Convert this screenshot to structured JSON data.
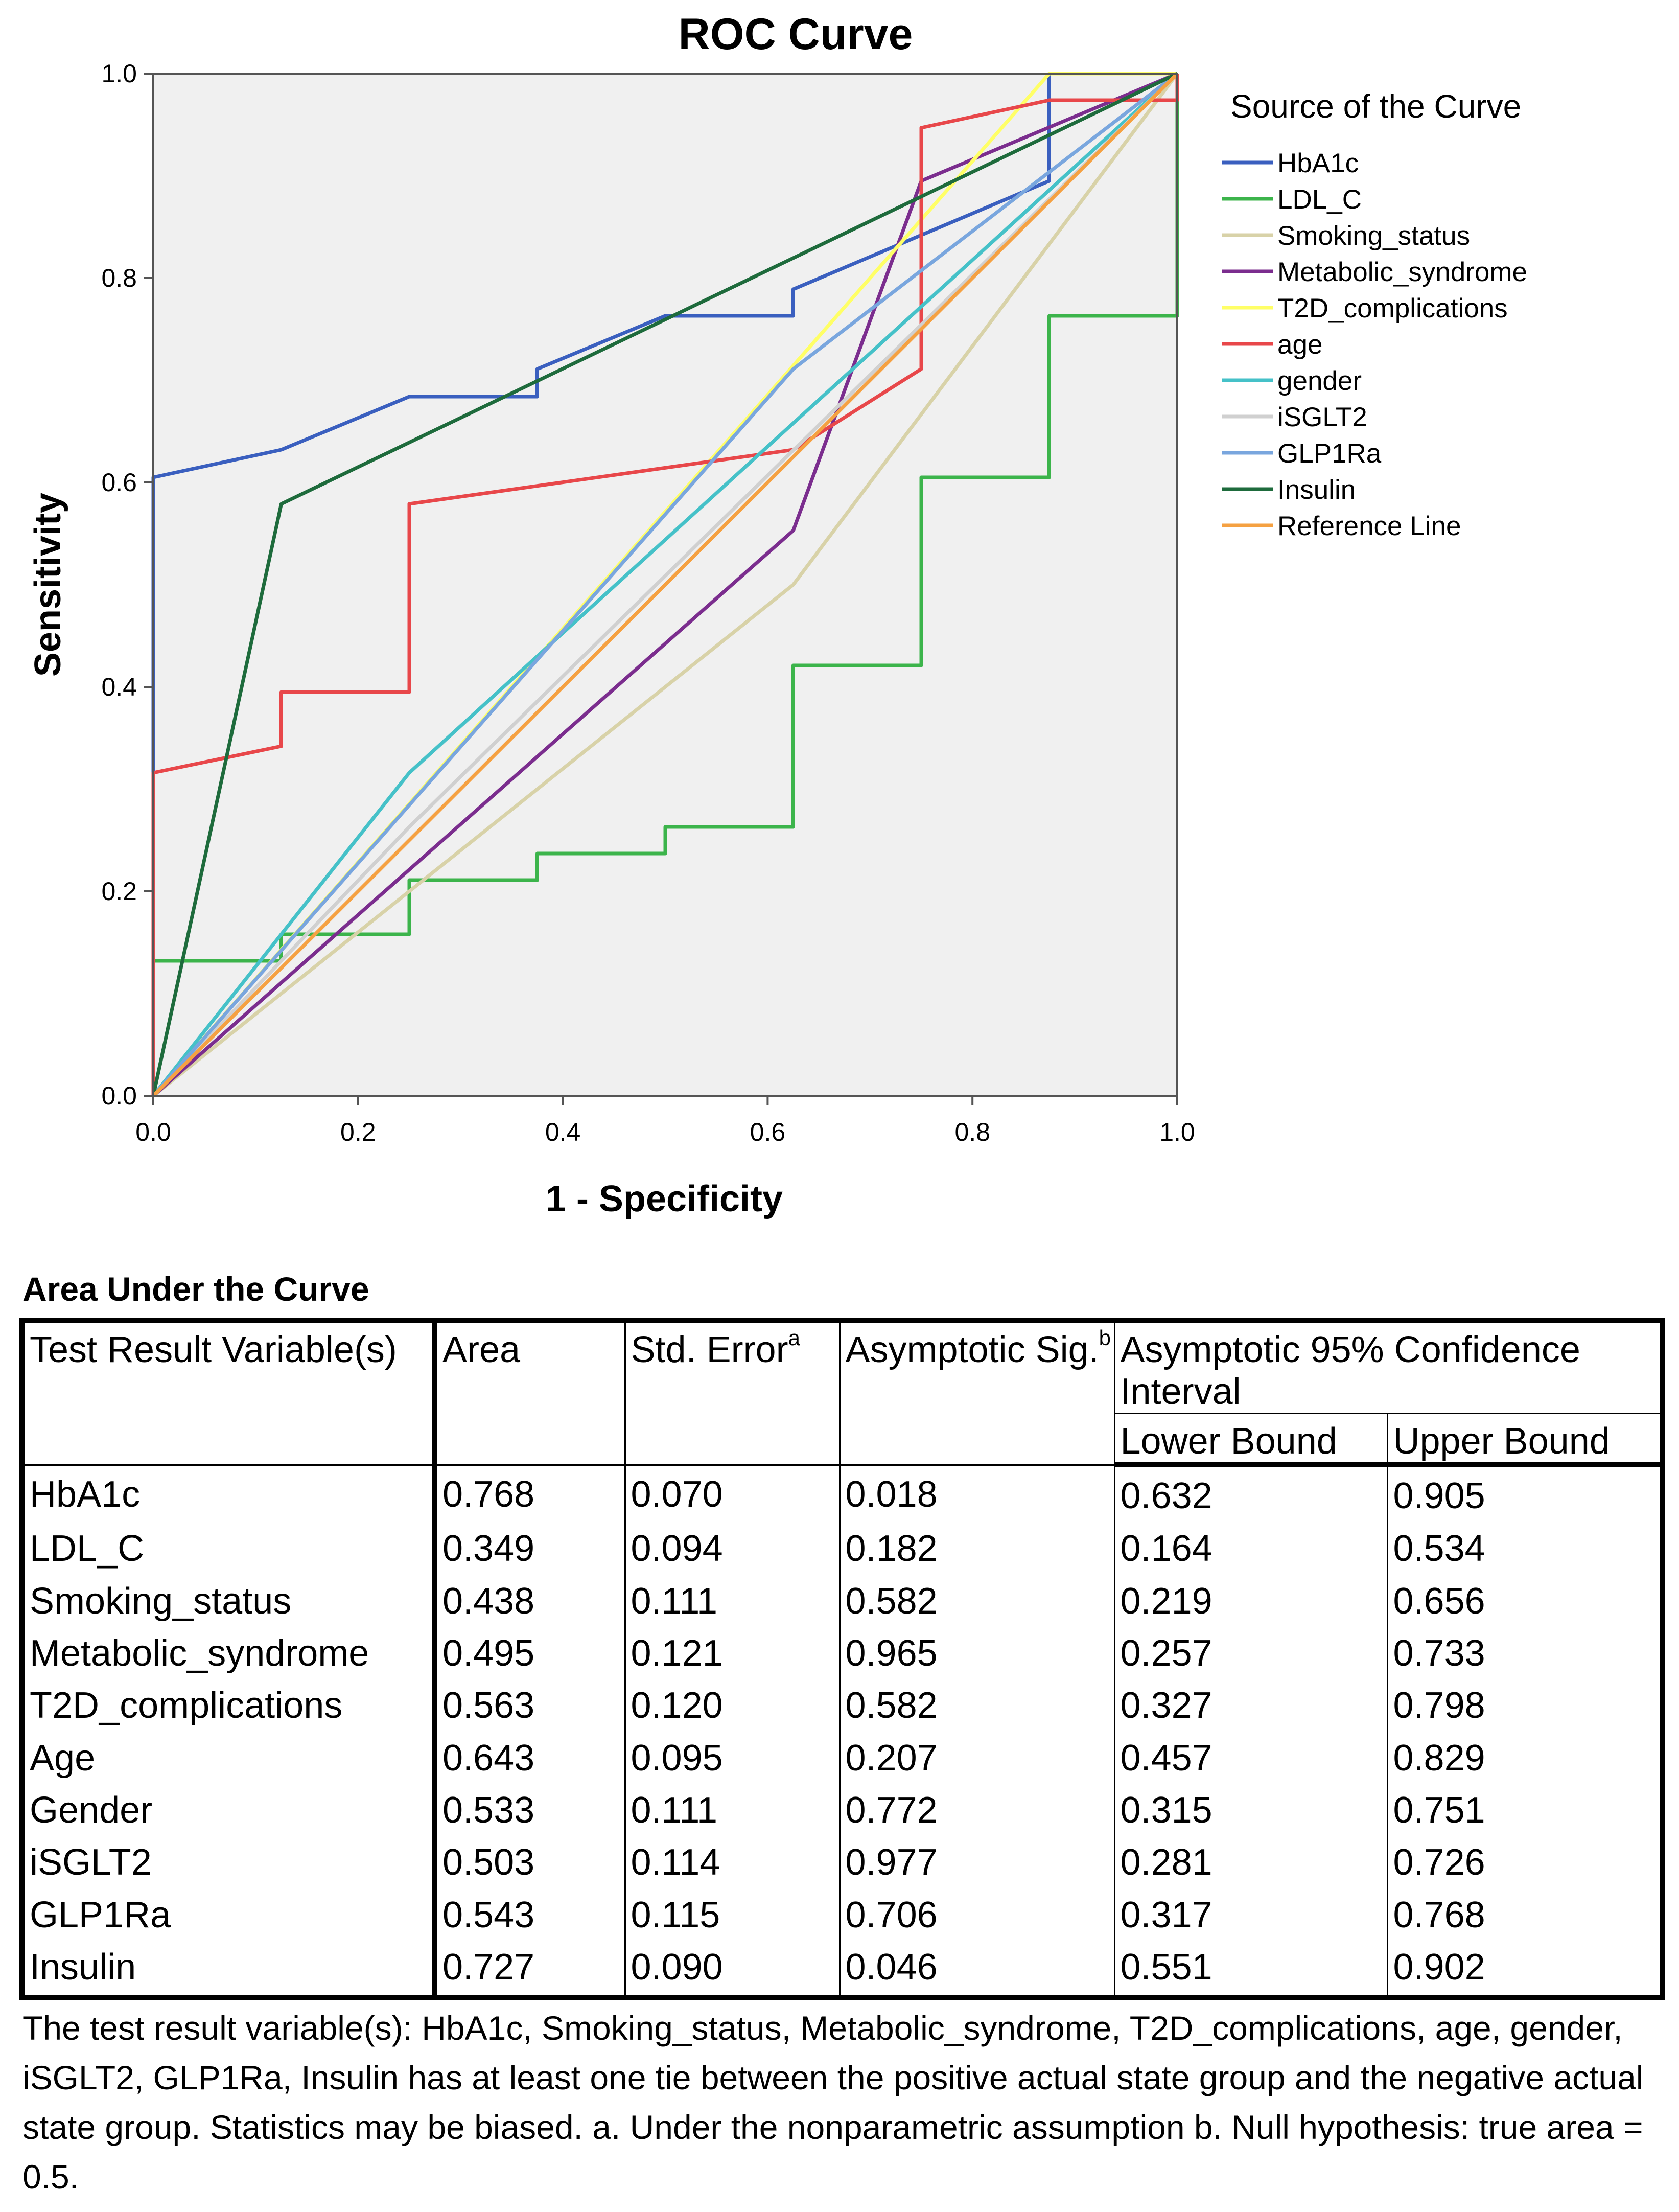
{
  "chart_data": {
    "type": "line",
    "title": "ROC Curve",
    "xlabel": "1 - Specificity",
    "ylabel": "Sensitivity",
    "xlim": [
      0,
      1
    ],
    "ylim": [
      0,
      1
    ],
    "x_ticks": [
      "0.0",
      "0.2",
      "0.4",
      "0.6",
      "0.8",
      "1.0"
    ],
    "y_ticks": [
      "0.0",
      "0.2",
      "0.4",
      "0.6",
      "0.8",
      "1.0"
    ],
    "grid": false,
    "plot_background": "#f0f0f0",
    "legend_title": "Source of the Curve",
    "legend_position": "right",
    "series": [
      {
        "name": "HbA1c",
        "color": "#3a5fbf",
        "points": [
          [
            0,
            0
          ],
          [
            0,
            0.605
          ],
          [
            0.125,
            0.632
          ],
          [
            0.25,
            0.684
          ],
          [
            0.375,
            0.684
          ],
          [
            0.375,
            0.711
          ],
          [
            0.5,
            0.763
          ],
          [
            0.625,
            0.763
          ],
          [
            0.625,
            0.789
          ],
          [
            0.875,
            0.895
          ],
          [
            0.875,
            1
          ],
          [
            1,
            1
          ]
        ]
      },
      {
        "name": "LDL_C",
        "color": "#3cb44b",
        "points": [
          [
            0,
            0
          ],
          [
            0,
            0.132
          ],
          [
            0.125,
            0.132
          ],
          [
            0.125,
            0.158
          ],
          [
            0.25,
            0.158
          ],
          [
            0.25,
            0.211
          ],
          [
            0.375,
            0.211
          ],
          [
            0.375,
            0.237
          ],
          [
            0.5,
            0.237
          ],
          [
            0.5,
            0.263
          ],
          [
            0.625,
            0.263
          ],
          [
            0.625,
            0.421
          ],
          [
            0.75,
            0.421
          ],
          [
            0.75,
            0.605
          ],
          [
            0.875,
            0.605
          ],
          [
            0.875,
            0.763
          ],
          [
            1,
            0.763
          ],
          [
            1,
            1
          ]
        ]
      },
      {
        "name": "Smoking_status",
        "color": "#d8d2a8",
        "points": [
          [
            0,
            0
          ],
          [
            0.625,
            0.5
          ],
          [
            1,
            1
          ]
        ]
      },
      {
        "name": "Metabolic_syndrome",
        "color": "#7b2d8e",
        "points": [
          [
            0,
            0
          ],
          [
            0.625,
            0.553
          ],
          [
            0.75,
            0.895
          ],
          [
            1,
            1
          ]
        ]
      },
      {
        "name": "T2D_complications",
        "color": "#ffff66",
        "points": [
          [
            0,
            0
          ],
          [
            0.875,
            1
          ],
          [
            1,
            1
          ]
        ]
      },
      {
        "name": "age",
        "color": "#e8474a",
        "points": [
          [
            0,
            0
          ],
          [
            0,
            0.316
          ],
          [
            0.125,
            0.342
          ],
          [
            0.125,
            0.395
          ],
          [
            0.25,
            0.395
          ],
          [
            0.25,
            0.579
          ],
          [
            0.625,
            0.632
          ],
          [
            0.75,
            0.711
          ],
          [
            0.75,
            0.947
          ],
          [
            0.875,
            0.974
          ],
          [
            1,
            0.974
          ],
          [
            1,
            1
          ]
        ]
      },
      {
        "name": "gender",
        "color": "#45c1c8",
        "points": [
          [
            0,
            0
          ],
          [
            0.25,
            0.316
          ],
          [
            1,
            1
          ]
        ]
      },
      {
        "name": "iSGLT2",
        "color": "#d0d0d0",
        "points": [
          [
            0,
            0
          ],
          [
            0.125,
            0.132
          ],
          [
            0.25,
            0.263
          ],
          [
            1,
            1
          ]
        ]
      },
      {
        "name": "GLP1Ra",
        "color": "#79a6de",
        "points": [
          [
            0,
            0
          ],
          [
            0.625,
            0.711
          ],
          [
            1,
            1
          ]
        ]
      },
      {
        "name": "Insulin",
        "color": "#1e6b3c",
        "points": [
          [
            0,
            0
          ],
          [
            0.125,
            0.579
          ],
          [
            1,
            1
          ]
        ]
      },
      {
        "name": "Reference Line",
        "color": "#f5a142",
        "points": [
          [
            0,
            0
          ],
          [
            1,
            1
          ]
        ]
      }
    ]
  },
  "table": {
    "title": "Area Under the Curve",
    "headers": {
      "variable": "Test Result Variable(s)",
      "area": "Area",
      "std_error": "Std. Error",
      "std_error_sup": "a",
      "sig": "Asymptotic Sig.",
      "sig_sup": "b",
      "ci": "Asymptotic 95% Confidence Interval",
      "lower": "Lower Bound",
      "upper": "Upper Bound"
    },
    "rows": [
      {
        "variable": "HbA1c",
        "area": "0.768",
        "std_error": "0.070",
        "sig": "0.018",
        "lower": "0.632",
        "upper": "0.905"
      },
      {
        "variable": "LDL_C",
        "area": "0.349",
        "std_error": "0.094",
        "sig": "0.182",
        "lower": "0.164",
        "upper": "0.534"
      },
      {
        "variable": "Smoking_status",
        "area": "0.438",
        "std_error": "0.111",
        "sig": "0.582",
        "lower": "0.219",
        "upper": "0.656"
      },
      {
        "variable": "Metabolic_syndrome",
        "area": "0.495",
        "std_error": "0.121",
        "sig": "0.965",
        "lower": "0.257",
        "upper": "0.733"
      },
      {
        "variable": "T2D_complications",
        "area": "0.563",
        "std_error": "0.120",
        "sig": "0.582",
        "lower": "0.327",
        "upper": "0.798"
      },
      {
        "variable": "Age",
        "area": "0.643",
        "std_error": "0.095",
        "sig": "0.207",
        "lower": "0.457",
        "upper": "0.829"
      },
      {
        "variable": "Gender",
        "area": "0.533",
        "std_error": "0.111",
        "sig": "0.772",
        "lower": "0.315",
        "upper": "0.751"
      },
      {
        "variable": "iSGLT2",
        "area": "0.503",
        "std_error": "0.114",
        "sig": "0.977",
        "lower": "0.281",
        "upper": "0.726"
      },
      {
        "variable": "GLP1Ra",
        "area": "0.543",
        "std_error": "0.115",
        "sig": "0.706",
        "lower": "0.317",
        "upper": "0.768"
      },
      {
        "variable": "Insulin",
        "area": "0.727",
        "std_error": "0.090",
        "sig": "0.046",
        "lower": "0.551",
        "upper": "0.902"
      }
    ]
  },
  "footnote": "The test result variable(s): HbA1c, Smoking_status, Metabolic_syndrome, T2D_complications, age, gender, iSGLT2, GLP1Ra, Insulin has at least one tie between the positive actual state group and the negative actual state group. Statistics may be biased. a. Under the nonparametric assumption b. Null hypothesis: true area = 0.5."
}
